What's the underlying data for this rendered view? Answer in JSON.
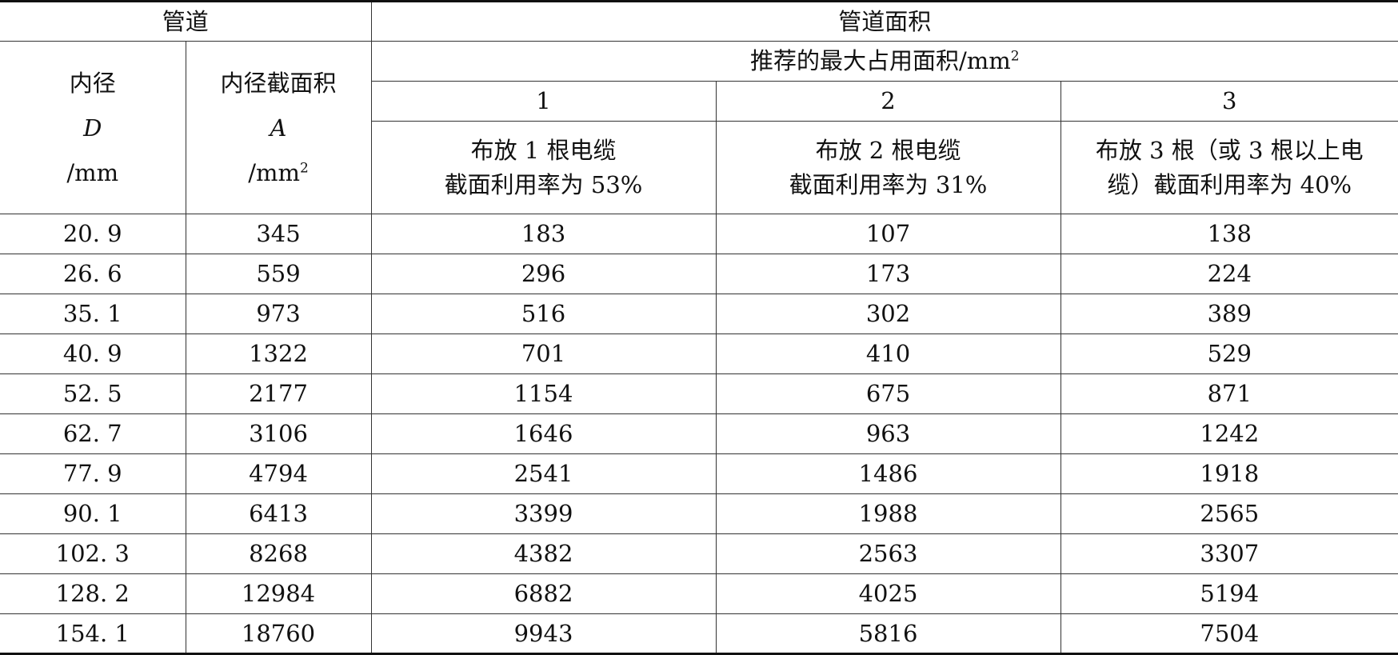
{
  "header": {
    "pipe": "管道",
    "pipe_area": "管道面积",
    "inner_diameter": {
      "label": "内径",
      "symbol": "D",
      "unit": "/mm"
    },
    "inner_area": {
      "label": "内径截面积",
      "symbol": "A",
      "unit": "/mm",
      "unit_sup": "2"
    },
    "recommended": {
      "label": "推荐的最大占用面积/mm",
      "sup": "2"
    },
    "columns": [
      {
        "number": "1",
        "line1": "布放 1 根电缆",
        "line2": "截面利用率为 53%"
      },
      {
        "number": "2",
        "line1": "布放 2 根电缆",
        "line2": "截面利用率为 31%"
      },
      {
        "number": "3",
        "line1": "布放 3 根（或 3 根以上电",
        "line2": "缆）截面利用率为 40%"
      }
    ]
  },
  "rows": [
    [
      "20. 9",
      "345",
      "183",
      "107",
      "138"
    ],
    [
      "26. 6",
      "559",
      "296",
      "173",
      "224"
    ],
    [
      "35. 1",
      "973",
      "516",
      "302",
      "389"
    ],
    [
      "40. 9",
      "1322",
      "701",
      "410",
      "529"
    ],
    [
      "52. 5",
      "2177",
      "1154",
      "675",
      "871"
    ],
    [
      "62. 7",
      "3106",
      "1646",
      "963",
      "1242"
    ],
    [
      "77. 9",
      "4794",
      "2541",
      "1486",
      "1918"
    ],
    [
      "90. 1",
      "6413",
      "3399",
      "1988",
      "2565"
    ],
    [
      "102. 3",
      "8268",
      "4382",
      "2563",
      "3307"
    ],
    [
      "128. 2",
      "12984",
      "6882",
      "4025",
      "5194"
    ],
    [
      "154. 1",
      "18760",
      "9943",
      "5816",
      "7504"
    ]
  ]
}
